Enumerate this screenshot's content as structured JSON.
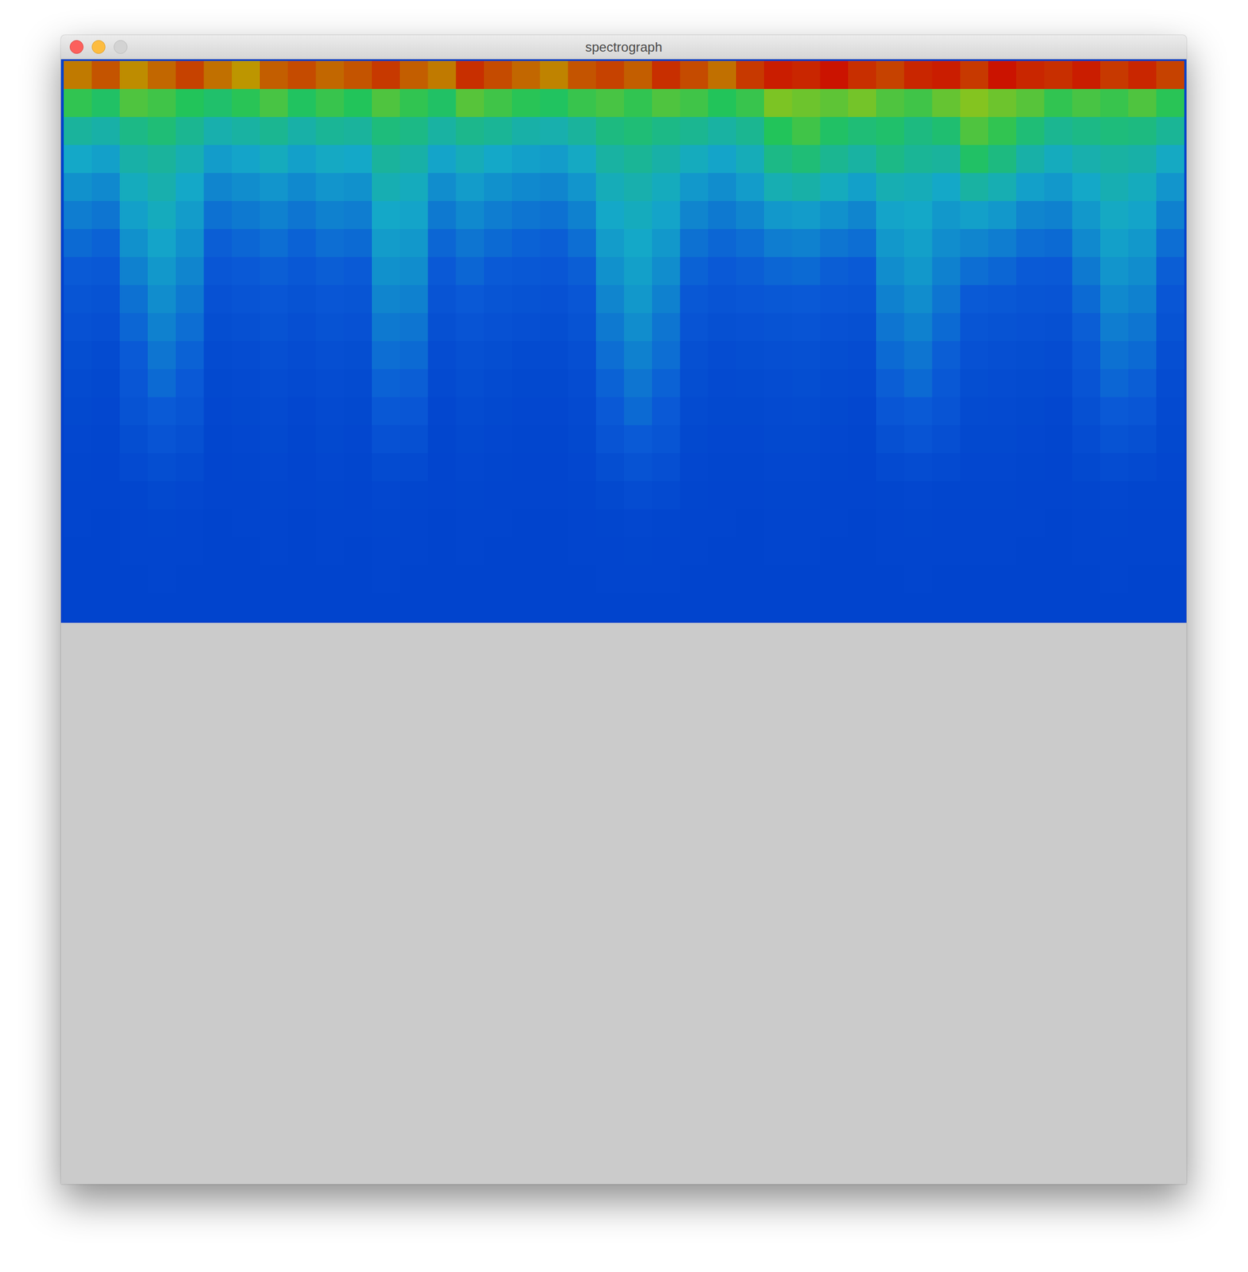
{
  "chart_data": {
    "type": "heatmap",
    "title": "spectrograph",
    "tick_labels": false,
    "color_range": [
      0,
      100
    ],
    "cells": [
      [
        88,
        92,
        86,
        90,
        94,
        89,
        85,
        91,
        93,
        90,
        92,
        95,
        91,
        88,
        96,
        93,
        90,
        87,
        92,
        94,
        91,
        96,
        93,
        89,
        95,
        98,
        97,
        99,
        96,
        94,
        97,
        98,
        95,
        99,
        97,
        96,
        98,
        95,
        97,
        94
      ],
      [
        62,
        58,
        66,
        64,
        60,
        57,
        61,
        65,
        59,
        63,
        60,
        66,
        62,
        58,
        67,
        64,
        61,
        59,
        63,
        65,
        62,
        66,
        64,
        60,
        63,
        72,
        70,
        68,
        71,
        66,
        64,
        69,
        73,
        70,
        67,
        62,
        65,
        63,
        66,
        61
      ],
      [
        48,
        46,
        52,
        55,
        50,
        45,
        47,
        50,
        46,
        49,
        48,
        54,
        52,
        47,
        51,
        49,
        46,
        45,
        48,
        53,
        55,
        52,
        50,
        47,
        50,
        60,
        64,
        58,
        55,
        57,
        53,
        56,
        66,
        62,
        55,
        50,
        52,
        54,
        53,
        49
      ],
      [
        40,
        38,
        46,
        48,
        44,
        37,
        39,
        42,
        38,
        41,
        40,
        48,
        46,
        39,
        43,
        40,
        38,
        37,
        41,
        47,
        49,
        46,
        42,
        39,
        43,
        52,
        55,
        50,
        47,
        52,
        49,
        48,
        58,
        53,
        46,
        42,
        45,
        47,
        46,
        41
      ],
      [
        34,
        32,
        42,
        45,
        40,
        31,
        33,
        35,
        32,
        35,
        34,
        44,
        42,
        33,
        37,
        34,
        32,
        31,
        35,
        43,
        45,
        42,
        36,
        33,
        37,
        44,
        46,
        42,
        38,
        44,
        43,
        40,
        47,
        44,
        38,
        36,
        40,
        44,
        42,
        35
      ],
      [
        29,
        27,
        38,
        42,
        37,
        26,
        28,
        30,
        27,
        30,
        29,
        40,
        39,
        28,
        32,
        29,
        27,
        26,
        30,
        40,
        42,
        39,
        31,
        28,
        31,
        36,
        37,
        34,
        31,
        39,
        40,
        36,
        38,
        36,
        31,
        30,
        36,
        41,
        39,
        30
      ],
      [
        24,
        22,
        34,
        39,
        34,
        21,
        23,
        25,
        22,
        25,
        24,
        37,
        36,
        23,
        27,
        24,
        22,
        21,
        25,
        37,
        40,
        36,
        26,
        23,
        25,
        29,
        30,
        27,
        25,
        36,
        38,
        33,
        31,
        29,
        25,
        24,
        32,
        38,
        36,
        25
      ],
      [
        20,
        18,
        30,
        36,
        31,
        17,
        19,
        21,
        18,
        21,
        20,
        34,
        33,
        19,
        23,
        20,
        18,
        17,
        21,
        34,
        38,
        33,
        22,
        19,
        21,
        23,
        24,
        21,
        20,
        33,
        36,
        30,
        25,
        23,
        20,
        19,
        28,
        35,
        33,
        21
      ],
      [
        16,
        14,
        26,
        33,
        28,
        13,
        15,
        17,
        14,
        17,
        16,
        31,
        30,
        15,
        19,
        16,
        14,
        13,
        17,
        31,
        36,
        30,
        18,
        15,
        17,
        18,
        19,
        17,
        16,
        30,
        33,
        27,
        20,
        18,
        16,
        15,
        24,
        32,
        30,
        17
      ],
      [
        13,
        11,
        23,
        30,
        25,
        10,
        12,
        14,
        11,
        14,
        13,
        28,
        27,
        12,
        15,
        13,
        11,
        10,
        14,
        28,
        33,
        27,
        15,
        12,
        13,
        14,
        15,
        13,
        12,
        27,
        30,
        24,
        16,
        14,
        13,
        12,
        21,
        29,
        27,
        14
      ],
      [
        10,
        8,
        20,
        27,
        22,
        8,
        9,
        11,
        9,
        11,
        10,
        25,
        24,
        9,
        12,
        10,
        8,
        8,
        11,
        25,
        30,
        25,
        12,
        9,
        10,
        11,
        12,
        10,
        9,
        24,
        27,
        21,
        13,
        11,
        10,
        9,
        18,
        26,
        24,
        11
      ],
      [
        8,
        6,
        17,
        24,
        19,
        6,
        7,
        9,
        7,
        9,
        8,
        22,
        21,
        7,
        10,
        8,
        6,
        6,
        9,
        22,
        27,
        22,
        10,
        7,
        8,
        9,
        10,
        8,
        7,
        21,
        24,
        18,
        10,
        9,
        8,
        7,
        15,
        23,
        21,
        9
      ],
      [
        6,
        5,
        14,
        20,
        16,
        5,
        6,
        7,
        5,
        7,
        6,
        18,
        17,
        5,
        8,
        6,
        5,
        5,
        7,
        19,
        24,
        19,
        8,
        6,
        6,
        7,
        8,
        6,
        5,
        17,
        20,
        15,
        8,
        7,
        6,
        5,
        12,
        19,
        17,
        7
      ],
      [
        5,
        4,
        10,
        15,
        12,
        4,
        5,
        6,
        4,
        6,
        5,
        13,
        12,
        4,
        6,
        5,
        4,
        4,
        6,
        15,
        20,
        16,
        6,
        5,
        5,
        6,
        6,
        5,
        4,
        12,
        15,
        11,
        6,
        6,
        5,
        4,
        9,
        14,
        12,
        6
      ],
      [
        4,
        3,
        7,
        10,
        8,
        3,
        4,
        5,
        3,
        5,
        4,
        8,
        7,
        3,
        5,
        4,
        3,
        3,
        5,
        10,
        14,
        11,
        5,
        4,
        4,
        5,
        5,
        4,
        3,
        7,
        9,
        7,
        5,
        5,
        4,
        3,
        6,
        9,
        7,
        5
      ],
      [
        3,
        3,
        4,
        6,
        5,
        3,
        3,
        4,
        3,
        4,
        3,
        5,
        4,
        3,
        4,
        3,
        3,
        3,
        4,
        6,
        9,
        7,
        4,
        3,
        3,
        4,
        4,
        3,
        3,
        4,
        5,
        4,
        4,
        4,
        3,
        3,
        4,
        5,
        4,
        4
      ],
      [
        3,
        2,
        3,
        4,
        3,
        2,
        3,
        3,
        2,
        3,
        3,
        4,
        3,
        2,
        3,
        3,
        2,
        2,
        3,
        4,
        5,
        4,
        3,
        3,
        2,
        3,
        3,
        3,
        2,
        3,
        4,
        3,
        3,
        3,
        3,
        2,
        3,
        4,
        3,
        3
      ],
      [
        2,
        2,
        3,
        3,
        3,
        2,
        2,
        3,
        2,
        3,
        2,
        3,
        3,
        2,
        3,
        2,
        2,
        2,
        3,
        3,
        4,
        3,
        3,
        2,
        2,
        3,
        3,
        2,
        2,
        3,
        3,
        3,
        3,
        3,
        2,
        2,
        3,
        3,
        3,
        3
      ],
      [
        2,
        2,
        2,
        3,
        2,
        2,
        2,
        2,
        2,
        2,
        2,
        3,
        2,
        2,
        2,
        2,
        2,
        2,
        2,
        3,
        3,
        3,
        2,
        2,
        2,
        2,
        2,
        2,
        2,
        2,
        3,
        2,
        2,
        2,
        2,
        2,
        2,
        3,
        2,
        2
      ],
      [
        2,
        2,
        2,
        2,
        2,
        2,
        2,
        2,
        2,
        2,
        2,
        2,
        2,
        2,
        2,
        2,
        2,
        2,
        2,
        2,
        2,
        2,
        2,
        2,
        2,
        2,
        2,
        2,
        2,
        2,
        2,
        2,
        2,
        2,
        2,
        2,
        2,
        2,
        2,
        2
      ]
    ]
  }
}
